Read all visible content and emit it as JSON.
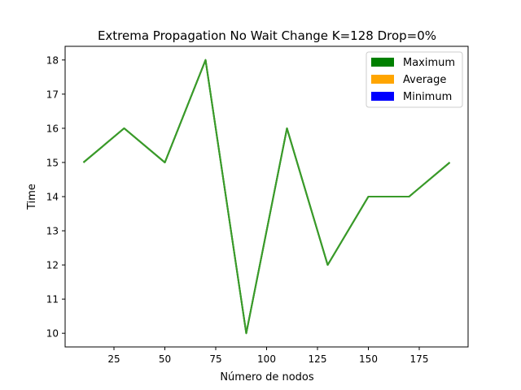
{
  "chart_data": {
    "type": "line",
    "title": "Extrema Propagation No Wait Change K=128 Drop=0%",
    "xlabel": "Número de nodos",
    "ylabel": "Time",
    "x": [
      10,
      30,
      50,
      70,
      90,
      110,
      130,
      150,
      170,
      190
    ],
    "series": [
      {
        "name": "Maximum",
        "color": "#008000",
        "values": [
          15,
          16,
          15,
          18,
          10,
          16,
          12,
          14,
          14,
          15
        ]
      },
      {
        "name": "Average",
        "color": "#ffa500",
        "values": [
          15,
          16,
          15,
          18,
          10,
          16,
          12,
          14,
          14,
          15
        ]
      },
      {
        "name": "Minimum",
        "color": "#0000ff",
        "values": [
          15,
          16,
          15,
          18,
          10,
          16,
          12,
          14,
          14,
          15
        ]
      }
    ],
    "line_color_visible": "#3a9a2a",
    "xlim": [
      1,
      199
    ],
    "ylim": [
      9.6,
      18.4
    ],
    "xticks": [
      25,
      50,
      75,
      100,
      125,
      150,
      175
    ],
    "yticks": [
      10,
      11,
      12,
      13,
      14,
      15,
      16,
      17,
      18
    ],
    "grid": false,
    "legend_position": "top-right"
  }
}
